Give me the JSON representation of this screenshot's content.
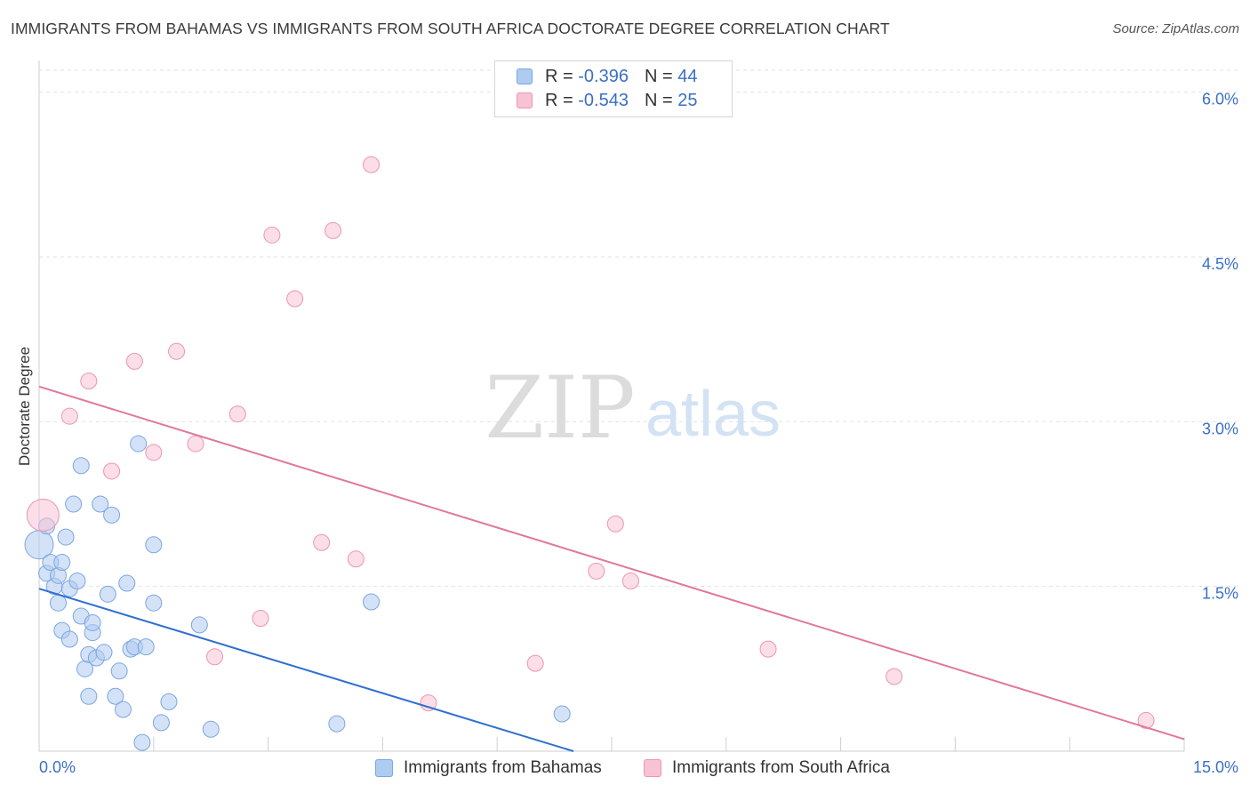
{
  "title": "IMMIGRANTS FROM BAHAMAS VS IMMIGRANTS FROM SOUTH AFRICA DOCTORATE DEGREE CORRELATION CHART",
  "source": "Source: ZipAtlas.com",
  "watermark": {
    "zip": "ZIP",
    "atlas": "atlas"
  },
  "legend": {
    "r_label": "R = ",
    "n_label": "N = ",
    "series": [
      {
        "name": "Immigrants from Bahamas",
        "r": "-0.396",
        "n": "44",
        "fill": "#aecbf0",
        "stroke": "#7ca6e0"
      },
      {
        "name": "Immigrants from South Africa",
        "r": "-0.543",
        "n": "25",
        "fill": "#f7c3d3",
        "stroke": "#eb96b1"
      }
    ]
  },
  "chart_data": {
    "type": "scatter",
    "title": "IMMIGRANTS FROM BAHAMAS VS IMMIGRANTS FROM SOUTH AFRICA DOCTORATE DEGREE CORRELATION CHART",
    "xlabel": "",
    "ylabel": "Doctorate Degree",
    "xlim": [
      0,
      15
    ],
    "ylim": [
      0,
      6.2
    ],
    "x_tick_labels": {
      "min": "0.0%",
      "max": "15.0%"
    },
    "y_ticks": [
      1.5,
      3.0,
      4.5,
      6.0
    ],
    "y_tick_labels": [
      "1.5%",
      "3.0%",
      "4.5%",
      "6.0%"
    ],
    "series": [
      {
        "name": "Immigrants from Bahamas",
        "color": "#aecbf0",
        "edge": "#7ca6e0",
        "line_color": "#2f6fd0",
        "trend": {
          "x": [
            0,
            7.0
          ],
          "y": [
            1.48,
            0.0
          ]
        },
        "points": [
          [
            0.0,
            1.88,
            16
          ],
          [
            0.1,
            2.05,
            9
          ],
          [
            0.1,
            1.62,
            9
          ],
          [
            0.15,
            1.72,
            9
          ],
          [
            0.2,
            1.5,
            9
          ],
          [
            0.25,
            1.35,
            9
          ],
          [
            0.25,
            1.6,
            9
          ],
          [
            0.3,
            1.72,
            9
          ],
          [
            0.3,
            1.1,
            9
          ],
          [
            0.35,
            1.95,
            9
          ],
          [
            0.4,
            1.02,
            9
          ],
          [
            0.4,
            1.48,
            9
          ],
          [
            0.45,
            2.25,
            9
          ],
          [
            0.5,
            1.55,
            9
          ],
          [
            0.55,
            1.23,
            9
          ],
          [
            0.55,
            2.6,
            9
          ],
          [
            0.6,
            0.75,
            9
          ],
          [
            0.65,
            0.5,
            9
          ],
          [
            0.65,
            0.88,
            9
          ],
          [
            0.7,
            1.08,
            9
          ],
          [
            0.7,
            1.17,
            9
          ],
          [
            0.75,
            0.85,
            9
          ],
          [
            0.8,
            2.25,
            9
          ],
          [
            0.85,
            0.9,
            9
          ],
          [
            0.9,
            1.43,
            9
          ],
          [
            0.95,
            2.15,
            9
          ],
          [
            1.0,
            0.5,
            9
          ],
          [
            1.05,
            0.73,
            9
          ],
          [
            1.1,
            0.38,
            9
          ],
          [
            1.15,
            1.53,
            9
          ],
          [
            1.2,
            0.93,
            9
          ],
          [
            1.25,
            0.95,
            9
          ],
          [
            1.3,
            2.8,
            9
          ],
          [
            1.35,
            0.08,
            9
          ],
          [
            1.4,
            0.95,
            9
          ],
          [
            1.5,
            1.35,
            9
          ],
          [
            1.5,
            1.88,
            9
          ],
          [
            1.6,
            0.26,
            9
          ],
          [
            1.7,
            0.45,
            9
          ],
          [
            2.1,
            1.15,
            9
          ],
          [
            2.25,
            0.2,
            9
          ],
          [
            3.9,
            0.25,
            9
          ],
          [
            4.35,
            1.36,
            9
          ],
          [
            6.85,
            0.34,
            9
          ]
        ]
      },
      {
        "name": "Immigrants from South Africa",
        "color": "#f7c3d3",
        "edge": "#eb96b1",
        "line_color": "#e0789c",
        "trend": {
          "x": [
            0,
            15.0
          ],
          "y": [
            3.32,
            0.11
          ]
        },
        "points": [
          [
            0.05,
            2.15,
            18
          ],
          [
            0.4,
            3.05,
            9
          ],
          [
            0.65,
            3.37,
            9
          ],
          [
            0.95,
            2.55,
            9
          ],
          [
            1.25,
            3.55,
            9
          ],
          [
            1.5,
            2.72,
            9
          ],
          [
            1.8,
            3.64,
            9
          ],
          [
            2.05,
            2.8,
            9
          ],
          [
            2.3,
            0.86,
            9
          ],
          [
            2.6,
            3.07,
            9
          ],
          [
            2.9,
            1.21,
            9
          ],
          [
            3.05,
            4.7,
            9
          ],
          [
            3.35,
            4.12,
            9
          ],
          [
            3.7,
            1.9,
            9
          ],
          [
            3.85,
            4.74,
            9
          ],
          [
            4.15,
            1.75,
            9
          ],
          [
            4.35,
            5.34,
            9
          ],
          [
            5.1,
            0.44,
            9
          ],
          [
            6.5,
            0.8,
            9
          ],
          [
            7.3,
            1.64,
            9
          ],
          [
            7.55,
            2.07,
            9
          ],
          [
            7.75,
            1.55,
            9
          ],
          [
            9.55,
            0.93,
            9
          ],
          [
            11.2,
            0.68,
            9
          ],
          [
            14.5,
            0.28,
            9
          ]
        ]
      }
    ]
  }
}
